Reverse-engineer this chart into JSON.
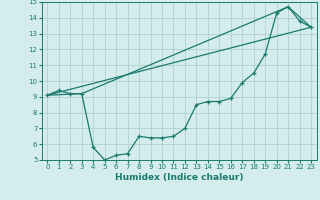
{
  "xlabel": "Humidex (Indice chaleur)",
  "bg_color": "#d4ecec",
  "grid_color": "#b0d0d0",
  "line_color": "#1a7a6e",
  "xlim": [
    -0.5,
    23.5
  ],
  "ylim": [
    5,
    15
  ],
  "xticks": [
    0,
    1,
    2,
    3,
    4,
    5,
    6,
    7,
    8,
    9,
    10,
    11,
    12,
    13,
    14,
    15,
    16,
    17,
    18,
    19,
    20,
    21,
    22,
    23
  ],
  "yticks": [
    5,
    6,
    7,
    8,
    9,
    10,
    11,
    12,
    13,
    14,
    15
  ],
  "series1_x": [
    0,
    1,
    2,
    3,
    4,
    5,
    6,
    7,
    8,
    9,
    10,
    11,
    12,
    13,
    14,
    15,
    16,
    17,
    18,
    19,
    20,
    21,
    22,
    23
  ],
  "series1_y": [
    9.1,
    9.4,
    9.2,
    9.2,
    5.8,
    5.0,
    5.3,
    5.4,
    6.5,
    6.4,
    6.4,
    6.5,
    7.0,
    8.5,
    8.7,
    8.7,
    8.9,
    9.9,
    10.5,
    11.7,
    14.3,
    14.7,
    13.8,
    13.4
  ],
  "series2_x": [
    0,
    3,
    21,
    23
  ],
  "series2_y": [
    9.1,
    9.2,
    14.7,
    13.4
  ],
  "series3_x": [
    0,
    23
  ],
  "series3_y": [
    9.1,
    13.4
  ]
}
